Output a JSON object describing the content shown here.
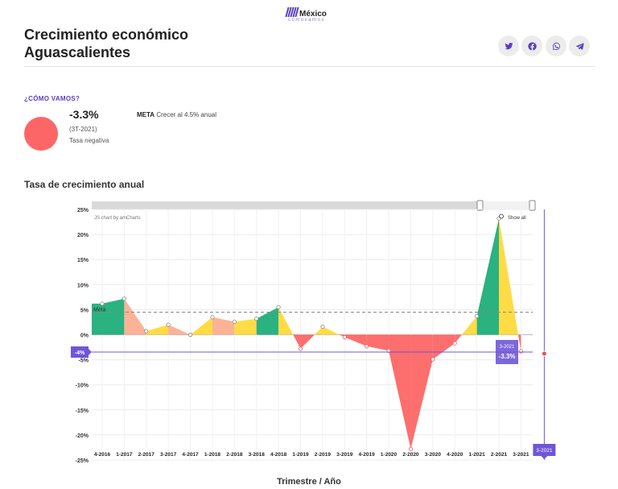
{
  "brand": {
    "name": "México",
    "tagline": "cómovamos"
  },
  "header": {
    "title": "Crecimiento económico Aguascalientes"
  },
  "share": [
    {
      "name": "twitter-share-button",
      "icon": "twitter-icon"
    },
    {
      "name": "facebook-share-button",
      "icon": "facebook-icon"
    },
    {
      "name": "whatsapp-share-button",
      "icon": "whatsapp-icon"
    },
    {
      "name": "telegram-share-button",
      "icon": "telegram-icon"
    }
  ],
  "summary": {
    "label": "¿CÓMO VAMOS?",
    "value": "-3.3%",
    "period": "(3T-2021)",
    "status": "Tasa negativa",
    "meta_label": "META",
    "meta_text": "Crecer al 4.5% anual",
    "color": "#fd6666"
  },
  "chart_title": "Tasa de crecimiento anual",
  "chart_data": {
    "type": "area",
    "xlabel": "Trimestre / Año",
    "credit": "JS chart by amCharts",
    "show_all_label": "Show all",
    "categories": [
      "4-2016",
      "1-2017",
      "2-2017",
      "3-2017",
      "4-2017",
      "1-2018",
      "2-2018",
      "3-2018",
      "4-2018",
      "1-2019",
      "2-2019",
      "3-2019",
      "4-2019",
      "1-2020",
      "2-2020",
      "3-2020",
      "4-2020",
      "1-2021",
      "2-2021",
      "3-2021"
    ],
    "values": [
      6.2,
      7.2,
      0.7,
      2.0,
      0.0,
      3.5,
      2.6,
      3.2,
      5.5,
      -2.8,
      1.6,
      -0.5,
      -2.3,
      -3.2,
      -22.8,
      -4.9,
      -1.7,
      3.7,
      23.2,
      -3.3
    ],
    "meta": {
      "value": 4.5,
      "label": "Meta"
    },
    "ylim": [
      -25,
      25
    ],
    "yticks": [
      25,
      20,
      15,
      10,
      5,
      0,
      -5,
      -10,
      -15,
      -20,
      -25
    ],
    "cursor": {
      "y_label": "-4%",
      "x_label": "3-2021",
      "tooltip_period": "3-2021",
      "tooltip_value": "-3.3%"
    },
    "colors": {
      "high": "#1fae7a",
      "mid": "#ffd93b",
      "low": "#fcae91",
      "negative": "#fd6666",
      "accent": "#6f56d8"
    }
  }
}
